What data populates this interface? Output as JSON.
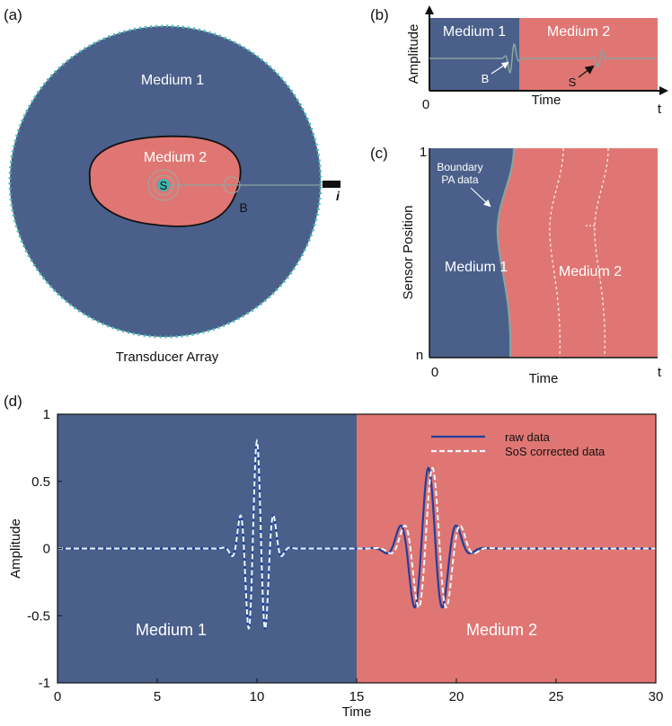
{
  "panel_a": {
    "label": "(a)",
    "medium1": "Medium 1",
    "medium2": "Medium 2",
    "source": "S",
    "boundary": "B",
    "sensor": "i",
    "array_caption": "Transducer Array"
  },
  "panel_b": {
    "label": "(b)",
    "ylabel": "Amplitude",
    "xlabel": "Time",
    "origin": "0",
    "t": "t",
    "medium1": "Medium 1",
    "medium2": "Medium 2",
    "b_marker": "B",
    "s_marker": "S"
  },
  "panel_c": {
    "label": "(c)",
    "ylabel": "Sensor Position",
    "xlabel": "Time",
    "y_top": "1",
    "y_bottom": "n",
    "origin": "0",
    "t": "t",
    "boundary_line1": "Boundary",
    "boundary_line2": "PA data",
    "dots": "...",
    "medium1": "Medium 1",
    "medium2": "Medium 2"
  },
  "chart_data": {
    "type": "line",
    "panel_label": "(d)",
    "xlabel": "Time",
    "ylabel": "Amplitude",
    "xlim": [
      0,
      30
    ],
    "ylim": [
      -1,
      1
    ],
    "xticks": [
      0,
      5,
      10,
      15,
      20,
      25,
      30
    ],
    "yticks": [
      -1,
      -0.5,
      0,
      0.5,
      1
    ],
    "boundary_x": 15,
    "regions": [
      {
        "name": "Medium 1",
        "from": 0,
        "to": 15,
        "color": "#4a5f8a"
      },
      {
        "name": "Medium 2",
        "from": 15,
        "to": 30,
        "color": "#e07673"
      }
    ],
    "legend": {
      "position": "top-right"
    },
    "series": [
      {
        "name": "raw data",
        "color": "#1f3f9e",
        "style": "solid",
        "pulses": [
          {
            "center": 10,
            "amplitude": 0.8,
            "sigma": 0.55,
            "freq": 1.15
          },
          {
            "center": 18.6,
            "amplitude": 0.6,
            "sigma": 0.9,
            "freq": 0.68
          }
        ]
      },
      {
        "name": "SoS corrected data",
        "color": "#e9f7ff",
        "style": "dashed",
        "pulses": [
          {
            "center": 10,
            "amplitude": 0.8,
            "sigma": 0.55,
            "freq": 1.15
          },
          {
            "center": 18.8,
            "amplitude": 0.6,
            "sigma": 0.9,
            "freq": 0.68
          }
        ]
      }
    ]
  },
  "colors": {
    "medium1": "#4a5f8a",
    "medium2": "#e07673",
    "signal": "#8aa3a0",
    "accent_dots": "#3fb7b0"
  }
}
